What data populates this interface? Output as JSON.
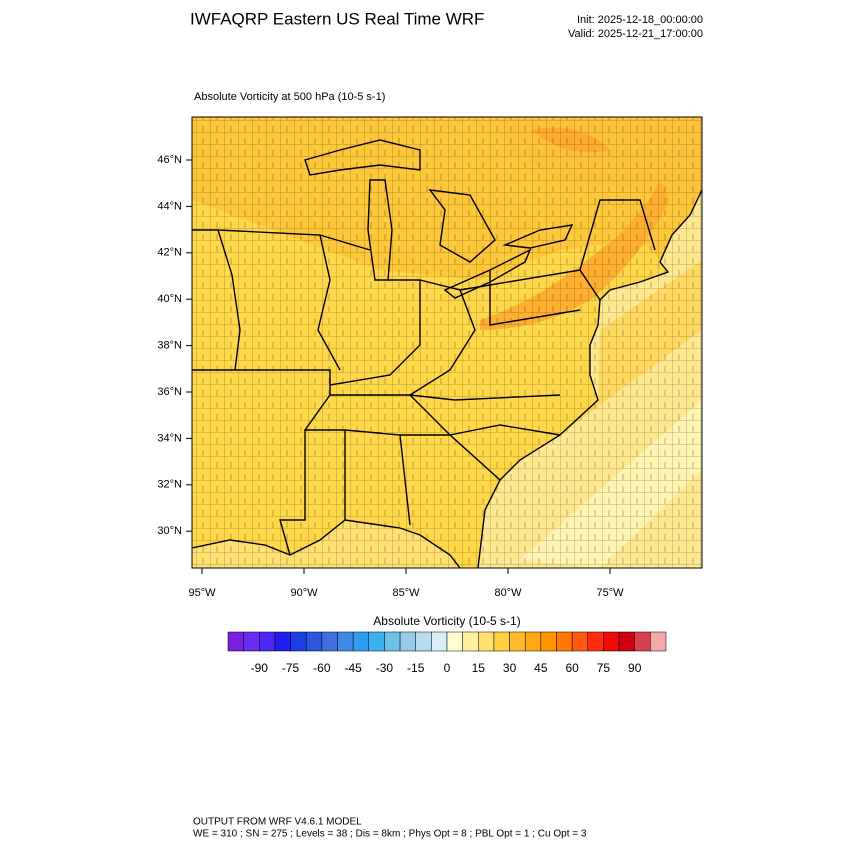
{
  "header": {
    "title": "IWFAQRP Eastern US Real Time WRF",
    "init": "Init: 2025-12-18_00:00:00",
    "valid": "Valid: 2025-12-21_17:00:00"
  },
  "map": {
    "subtitle": "Absolute Vorticity at 500 hPa   (10-5 s-1)",
    "lat_labels": [
      "46°N",
      "44°N",
      "42°N",
      "40°N",
      "38°N",
      "36°N",
      "34°N",
      "32°N",
      "30°N"
    ],
    "lon_labels": [
      "95°W",
      "90°W",
      "85°W",
      "80°W",
      "75°W"
    ]
  },
  "colorbar": {
    "title": "Absolute Vorticity  (10-5 s-1)",
    "colors": [
      "#7a1fe0",
      "#6a2cf0",
      "#4a28f2",
      "#1e1ef0",
      "#1e3ce6",
      "#2c55e0",
      "#3f6ee0",
      "#3f88e8",
      "#2f9cf0",
      "#3cb2f0",
      "#6cc0ea",
      "#96cce8",
      "#b8dcee",
      "#d8eef8",
      "#fffcd0",
      "#fff0a0",
      "#ffe070",
      "#ffd040",
      "#ffbc28",
      "#ffa812",
      "#ff9400",
      "#ff7800",
      "#ff5810",
      "#ff2c10",
      "#f00a0a",
      "#d00014",
      "#d84050",
      "#f4a8a8"
    ],
    "ticks": [
      -90,
      -75,
      -60,
      -45,
      -30,
      -15,
      0,
      15,
      30,
      45,
      60,
      75,
      90
    ]
  },
  "footer": {
    "lines": [
      "OUTPUT FROM WRF V4.6.1 MODEL",
      "WE = 310 ; SN = 275 ; Levels = 38 ; Dis = 8km ; Phys Opt = 8 ; PBL Opt = 1 ; Cu Opt = 3"
    ]
  }
}
